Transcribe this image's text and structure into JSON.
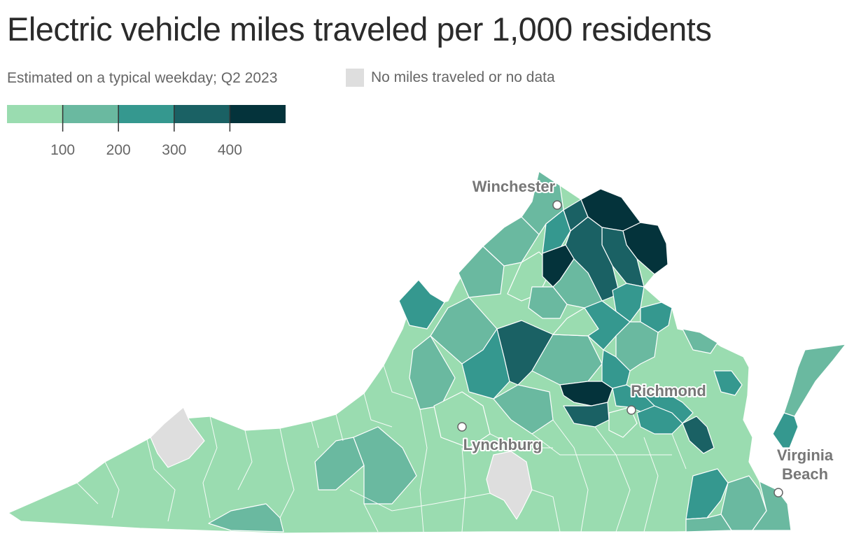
{
  "title": "Electric vehicle miles traveled per 1,000 residents",
  "subtitle": "Estimated on a typical weekday; Q2 2023",
  "no_data_legend": "No miles traveled or no data",
  "colors": {
    "no_data": "#dedede",
    "bins": [
      "#9adcb0",
      "#6ab9a0",
      "#35988f",
      "#1a6164",
      "#04333b"
    ]
  },
  "legend": {
    "ticks": [
      {
        "value": 100,
        "label": "100"
      },
      {
        "value": 200,
        "label": "200"
      },
      {
        "value": 300,
        "label": "300"
      },
      {
        "value": 400,
        "label": "400"
      }
    ],
    "domain": [
      0,
      500
    ]
  },
  "cities": [
    {
      "name": "Winchester",
      "label_lines": [
        "Winchester"
      ]
    },
    {
      "name": "Richmond",
      "label_lines": [
        "Richmond"
      ]
    },
    {
      "name": "Lynchburg",
      "label_lines": [
        "Lynchburg"
      ]
    },
    {
      "name": "Virginia Beach",
      "label_lines": [
        "Virginia",
        "Beach"
      ]
    }
  ]
}
